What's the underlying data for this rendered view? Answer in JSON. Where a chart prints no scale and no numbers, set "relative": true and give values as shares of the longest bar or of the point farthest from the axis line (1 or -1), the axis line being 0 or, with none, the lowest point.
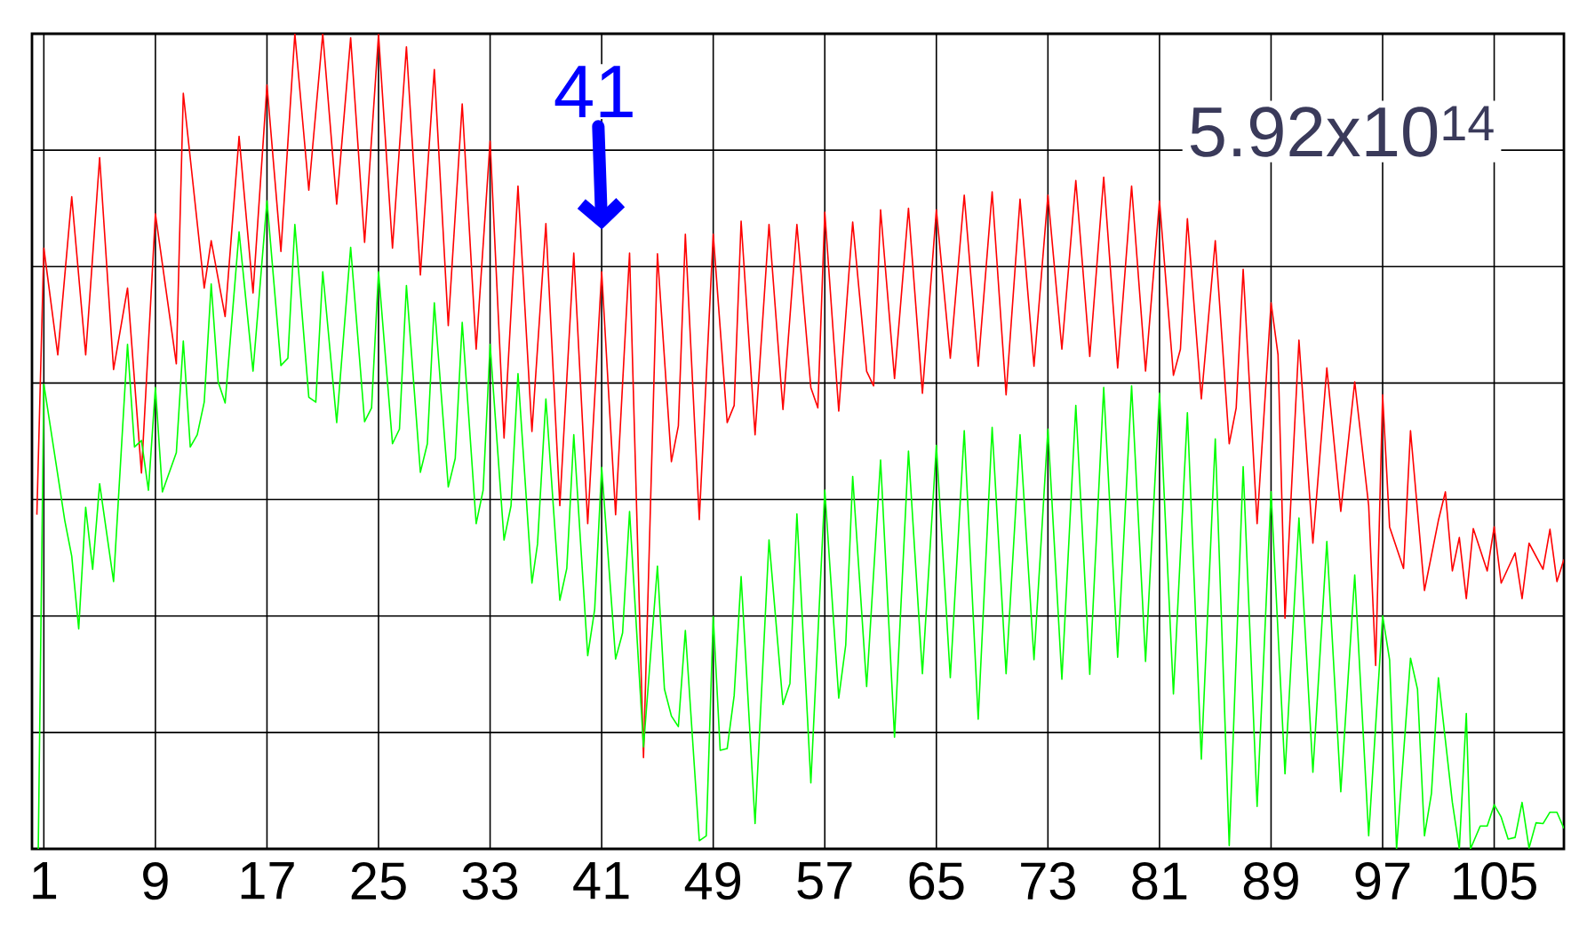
{
  "chart_data": {
    "type": "line",
    "relative": true,
    "grid": true,
    "tick_labels": "x",
    "xlim": [
      0.15,
      110
    ],
    "xticks": [
      1,
      9,
      17,
      25,
      33,
      41,
      49,
      57,
      65,
      73,
      81,
      89,
      97,
      105
    ],
    "annotations": [
      "41",
      "5.92x10$^{14}$"
    ],
    "series": [
      {
        "color": "#ff0000",
        "x": [
          0.5,
          1,
          2,
          3,
          4,
          5,
          6,
          7,
          8,
          9,
          10.5,
          11,
          12.5,
          13,
          14,
          15,
          16,
          17,
          18,
          19,
          20,
          21,
          22,
          23,
          24,
          25,
          26,
          27,
          28,
          29,
          30,
          31,
          32,
          33,
          34,
          35,
          36,
          37,
          38,
          39,
          40,
          41,
          42,
          43,
          44,
          45,
          46,
          46.5,
          47,
          48,
          49,
          50,
          50.5,
          51,
          52,
          53,
          54,
          55,
          56,
          56.5,
          57,
          58,
          59,
          60,
          60.5,
          61,
          62,
          63,
          64,
          65,
          66,
          67,
          68,
          69,
          70,
          71,
          72,
          73,
          74,
          75,
          76,
          77,
          78,
          79,
          80,
          81,
          82,
          82.5,
          83,
          84,
          85,
          86,
          86.5,
          87,
          88,
          89,
          89.5,
          90,
          91,
          92,
          93,
          94,
          95,
          96,
          96.5,
          97,
          97.5,
          98.5,
          99,
          100,
          101,
          101.5,
          102,
          102.5,
          103,
          103.5,
          104.5,
          105,
          105.5,
          106.5,
          107,
          107.5,
          108.5,
          109,
          109.5,
          110
        ],
        "values": [
          0.41,
          0.737,
          0.606,
          0.8,
          0.606,
          0.848,
          0.588,
          0.688,
          0.461,
          0.779,
          0.595,
          0.927,
          0.688,
          0.746,
          0.653,
          0.874,
          0.682,
          0.937,
          0.733,
          1.0,
          0.808,
          1.0,
          0.791,
          0.995,
          0.744,
          0.999,
          0.737,
          0.984,
          0.704,
          0.956,
          0.642,
          0.914,
          0.613,
          0.868,
          0.504,
          0.813,
          0.512,
          0.767,
          0.421,
          0.731,
          0.399,
          0.708,
          0.41,
          0.731,
          0.112,
          0.73,
          0.475,
          0.519,
          0.754,
          0.404,
          0.754,
          0.523,
          0.544,
          0.77,
          0.508,
          0.766,
          0.539,
          0.766,
          0.566,
          0.541,
          0.781,
          0.537,
          0.769,
          0.586,
          0.568,
          0.784,
          0.577,
          0.786,
          0.559,
          0.784,
          0.602,
          0.802,
          0.592,
          0.806,
          0.557,
          0.797,
          0.592,
          0.802,
          0.613,
          0.82,
          0.604,
          0.824,
          0.59,
          0.813,
          0.586,
          0.795,
          0.581,
          0.613,
          0.773,
          0.552,
          0.746,
          0.497,
          0.541,
          0.711,
          0.399,
          0.67,
          0.606,
          0.283,
          0.624,
          0.375,
          0.59,
          0.414,
          0.573,
          0.421,
          0.225,
          0.557,
          0.395,
          0.344,
          0.513,
          0.317,
          0.403,
          0.438,
          0.341,
          0.382,
          0.307,
          0.393,
          0.341,
          0.395,
          0.326,
          0.363,
          0.307,
          0.375,
          0.343,
          0.392,
          0.328,
          0.355
        ]
      },
      {
        "color": "#00ff00",
        "x": [
          0.6,
          1,
          2.5,
          3,
          3.5,
          4,
          4.5,
          5,
          6,
          7,
          7.5,
          8,
          8.5,
          9,
          9.5,
          10.5,
          11,
          11.5,
          12,
          12.5,
          13,
          13.5,
          14,
          15,
          16,
          17,
          18,
          18.5,
          19,
          20,
          20.5,
          21,
          22,
          23,
          24,
          24.5,
          25,
          26,
          26.5,
          27,
          28,
          28.5,
          29,
          30,
          30.5,
          31,
          32,
          32.5,
          33,
          34,
          34.5,
          35,
          36,
          36.4,
          37,
          38,
          38.5,
          39,
          40,
          40.5,
          41,
          42,
          42.5,
          43,
          44,
          45,
          45.5,
          46,
          46.5,
          47,
          48,
          48.5,
          49,
          49.5,
          50,
          50.5,
          51,
          52,
          53,
          54,
          54.5,
          55,
          56,
          57,
          58,
          58.5,
          59,
          60,
          61,
          62,
          63,
          64,
          65,
          66,
          67,
          68,
          69,
          70,
          71,
          72,
          73,
          74,
          75,
          76,
          77,
          78,
          79,
          80,
          81,
          82,
          83,
          84,
          85,
          86,
          87,
          88,
          89,
          90,
          91,
          92,
          93,
          94,
          95,
          96,
          97,
          97.5,
          98,
          99,
          99.5,
          100,
          100.5,
          101,
          102,
          102.5,
          103,
          103.3,
          104,
          104.5,
          105,
          105.5,
          106,
          106.5,
          107,
          107.5,
          108,
          108.5,
          109,
          109.5,
          110
        ],
        "values": [
          0,
          0.57,
          0.403,
          0.359,
          0.27,
          0.419,
          0.343,
          0.448,
          0.328,
          0.619,
          0.493,
          0.501,
          0.44,
          0.566,
          0.438,
          0.486,
          0.623,
          0.493,
          0.508,
          0.548,
          0.693,
          0.573,
          0.547,
          0.757,
          0.586,
          0.795,
          0.593,
          0.602,
          0.766,
          0.554,
          0.548,
          0.708,
          0.523,
          0.738,
          0.524,
          0.541,
          0.708,
          0.497,
          0.515,
          0.691,
          0.462,
          0.497,
          0.67,
          0.444,
          0.479,
          0.646,
          0.399,
          0.44,
          0.619,
          0.379,
          0.421,
          0.583,
          0.326,
          0.374,
          0.552,
          0.305,
          0.344,
          0.508,
          0.237,
          0.294,
          0.468,
          0.233,
          0.265,
          0.414,
          0.125,
          0.347,
          0.196,
          0.163,
          0.15,
          0.268,
          0.01,
          0.016,
          0.285,
          0.121,
          0.123,
          0.188,
          0.334,
          0.031,
          0.379,
          0.177,
          0.203,
          0.411,
          0.081,
          0.44,
          0.185,
          0.25,
          0.457,
          0.199,
          0.477,
          0.137,
          0.488,
          0.215,
          0.495,
          0.21,
          0.513,
          0.159,
          0.517,
          0.215,
          0.508,
          0.232,
          0.515,
          0.208,
          0.544,
          0.214,
          0.566,
          0.235,
          0.568,
          0.23,
          0.559,
          0.19,
          0.535,
          0.11,
          0.503,
          0.004,
          0.469,
          0.052,
          0.438,
          0.092,
          0.406,
          0.094,
          0.377,
          0.07,
          0.336,
          0.016,
          0.286,
          0.232,
          0,
          0.234,
          0.196,
          0.016,
          0.068,
          0.21,
          0.057,
          0,
          0.166,
          0,
          0.028,
          0.028,
          0.054,
          0.039,
          0.012,
          0.014,
          0.057,
          0.001,
          0.032,
          0.031,
          0.045,
          0.045,
          0.025
        ]
      }
    ]
  }
}
